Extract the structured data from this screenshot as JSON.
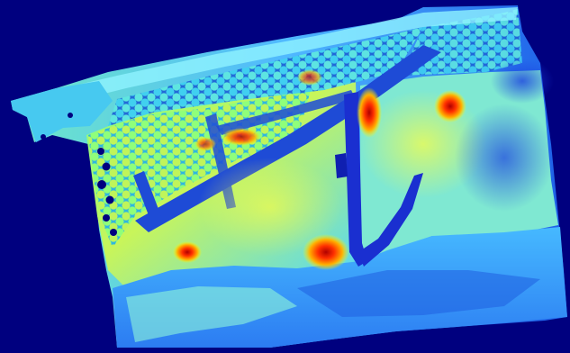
{
  "image": {
    "kind": "jet-colormap depth/intensity visualization",
    "background_color": "#00007f",
    "colormap": [
      "#00007f",
      "#0000ff",
      "#0080ff",
      "#00ffff",
      "#80ff80",
      "#ffff00",
      "#ff8000",
      "#ff0000",
      "#7f0000"
    ]
  }
}
